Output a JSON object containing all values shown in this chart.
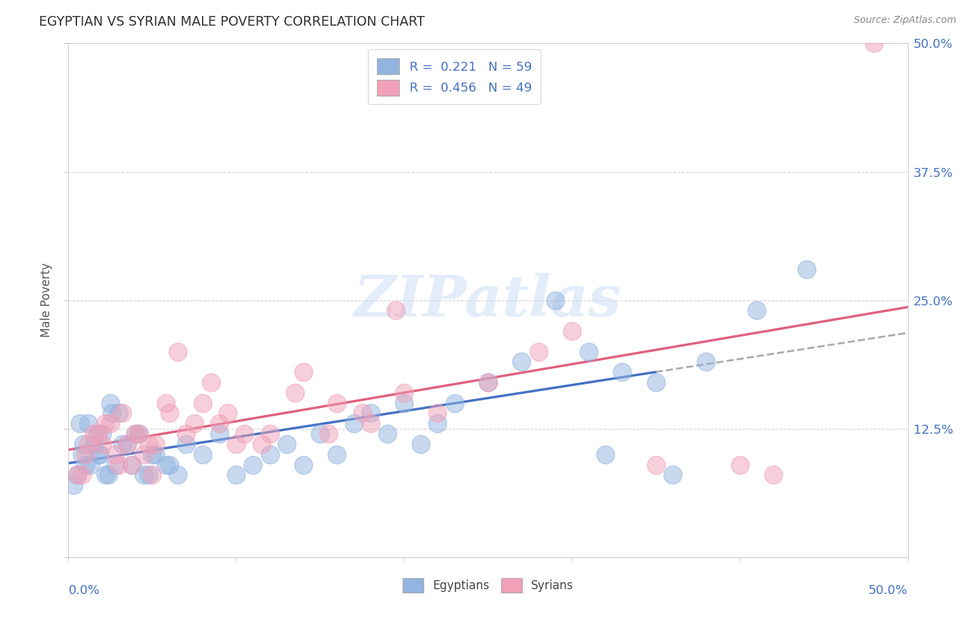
{
  "title": "EGYPTIAN VS SYRIAN MALE POVERTY CORRELATION CHART",
  "source": "Source: ZipAtlas.com",
  "ylabel": "Male Poverty",
  "right_yticks": [
    0.0,
    0.125,
    0.25,
    0.375,
    0.5
  ],
  "right_yticklabels": [
    "",
    "12.5%",
    "25.0%",
    "37.5%",
    "50.0%"
  ],
  "xlim": [
    -0.01,
    0.52
  ],
  "ylim": [
    -0.02,
    0.54
  ],
  "legend_r1": "R =  0.221",
  "legend_n1": "N = 59",
  "legend_r2": "R =  0.456",
  "legend_n2": "N = 49",
  "egyptian_color": "#92b4e0",
  "syrian_color": "#f0a0b8",
  "eg_trend_color": "#4472c4",
  "eg_trend_ext_color": "#aaaaaa",
  "sy_trend_color": "#e06080",
  "watermark_text": "ZIPatlas",
  "label_color": "#4472c4",
  "bottom_legend_color": "#444444",
  "egyptian_x": [
    0.005,
    0.008,
    0.009,
    0.01,
    0.012,
    0.013,
    0.015,
    0.017,
    0.018,
    0.019,
    0.02,
    0.022,
    0.024,
    0.025,
    0.026,
    0.028,
    0.03,
    0.032,
    0.035,
    0.038,
    0.04,
    0.042,
    0.045,
    0.048,
    0.05,
    0.052,
    0.058,
    0.06,
    0.065,
    0.07,
    0.08,
    0.09,
    0.1,
    0.11,
    0.12,
    0.13,
    0.14,
    0.15,
    0.16,
    0.17,
    0.18,
    0.19,
    0.2,
    0.21,
    0.22,
    0.23,
    0.25,
    0.27,
    0.29,
    0.31,
    0.32,
    0.33,
    0.35,
    0.36,
    0.38,
    0.41,
    0.44,
    0.003,
    0.007
  ],
  "egyptian_y": [
    0.08,
    0.1,
    0.11,
    0.09,
    0.13,
    0.09,
    0.11,
    0.12,
    0.1,
    0.1,
    0.12,
    0.08,
    0.08,
    0.15,
    0.14,
    0.09,
    0.14,
    0.11,
    0.11,
    0.09,
    0.12,
    0.12,
    0.08,
    0.08,
    0.1,
    0.1,
    0.09,
    0.09,
    0.08,
    0.11,
    0.1,
    0.12,
    0.08,
    0.09,
    0.1,
    0.11,
    0.09,
    0.12,
    0.1,
    0.13,
    0.14,
    0.12,
    0.15,
    0.11,
    0.13,
    0.15,
    0.17,
    0.19,
    0.25,
    0.2,
    0.1,
    0.18,
    0.17,
    0.08,
    0.19,
    0.24,
    0.28,
    0.07,
    0.13
  ],
  "syrian_x": [
    0.005,
    0.008,
    0.01,
    0.012,
    0.015,
    0.018,
    0.02,
    0.022,
    0.025,
    0.028,
    0.03,
    0.032,
    0.035,
    0.038,
    0.04,
    0.042,
    0.045,
    0.048,
    0.05,
    0.052,
    0.058,
    0.06,
    0.065,
    0.07,
    0.075,
    0.08,
    0.085,
    0.09,
    0.095,
    0.1,
    0.105,
    0.115,
    0.12,
    0.135,
    0.14,
    0.155,
    0.16,
    0.175,
    0.18,
    0.195,
    0.2,
    0.22,
    0.25,
    0.28,
    0.3,
    0.35,
    0.4,
    0.42,
    0.48
  ],
  "syrian_y": [
    0.08,
    0.08,
    0.1,
    0.11,
    0.12,
    0.12,
    0.11,
    0.13,
    0.13,
    0.1,
    0.09,
    0.14,
    0.11,
    0.09,
    0.12,
    0.12,
    0.1,
    0.11,
    0.08,
    0.11,
    0.15,
    0.14,
    0.2,
    0.12,
    0.13,
    0.15,
    0.17,
    0.13,
    0.14,
    0.11,
    0.12,
    0.11,
    0.12,
    0.16,
    0.18,
    0.12,
    0.15,
    0.14,
    0.13,
    0.24,
    0.16,
    0.14,
    0.17,
    0.2,
    0.22,
    0.09,
    0.09,
    0.08,
    0.5
  ],
  "background_color": "#ffffff",
  "grid_color": "#cccccc",
  "eg_trend_xmax": 0.35,
  "plot_xlim": [
    0.0,
    0.5
  ],
  "plot_ylim": [
    0.0,
    0.5
  ]
}
